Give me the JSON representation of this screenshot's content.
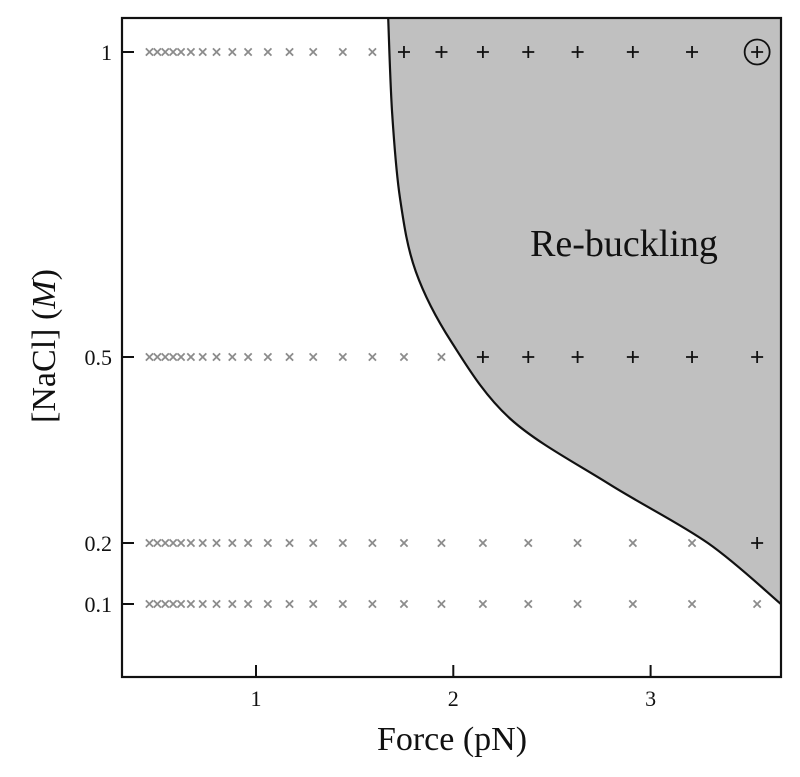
{
  "chart_data": {
    "type": "scatter",
    "xlabel": "Force (pN)",
    "ylabel_prefix": "[NaCl] (",
    "ylabel_unit": "M",
    "ylabel_suffix": ")",
    "xlim": [
      0.33,
      3.66
    ],
    "x_ticks": [
      1,
      2,
      3
    ],
    "x_tick_labels": [
      "1",
      "2",
      "3"
    ],
    "y_ticks": [
      0.1,
      0.2,
      0.5,
      1
    ],
    "y_tick_labels": [
      "0.1",
      "0.2",
      "0.5",
      "1"
    ],
    "y_scale": "piecewise (axis tick spacing preserved)",
    "region_label": "Re-buckling",
    "colors": {
      "region_fill": "#c0c0c0",
      "no_rebuckling_marker": "#8c8c8c",
      "rebuckling_marker": "#111111",
      "boundary": "#111111"
    },
    "series": [
      {
        "marker": "x",
        "points": [
          {
            "x": 0.46,
            "y": 1
          },
          {
            "x": 0.5,
            "y": 1
          },
          {
            "x": 0.54,
            "y": 1
          },
          {
            "x": 0.58,
            "y": 1
          },
          {
            "x": 0.62,
            "y": 1
          },
          {
            "x": 0.67,
            "y": 1
          },
          {
            "x": 0.73,
            "y": 1
          },
          {
            "x": 0.8,
            "y": 1
          },
          {
            "x": 0.88,
            "y": 1
          },
          {
            "x": 0.96,
            "y": 1
          },
          {
            "x": 1.06,
            "y": 1
          },
          {
            "x": 1.17,
            "y": 1
          },
          {
            "x": 1.29,
            "y": 1
          },
          {
            "x": 1.44,
            "y": 1
          },
          {
            "x": 1.59,
            "y": 1
          },
          {
            "x": 0.46,
            "y": 0.5
          },
          {
            "x": 0.5,
            "y": 0.5
          },
          {
            "x": 0.54,
            "y": 0.5
          },
          {
            "x": 0.58,
            "y": 0.5
          },
          {
            "x": 0.62,
            "y": 0.5
          },
          {
            "x": 0.67,
            "y": 0.5
          },
          {
            "x": 0.73,
            "y": 0.5
          },
          {
            "x": 0.8,
            "y": 0.5
          },
          {
            "x": 0.88,
            "y": 0.5
          },
          {
            "x": 0.96,
            "y": 0.5
          },
          {
            "x": 1.06,
            "y": 0.5
          },
          {
            "x": 1.17,
            "y": 0.5
          },
          {
            "x": 1.29,
            "y": 0.5
          },
          {
            "x": 1.44,
            "y": 0.5
          },
          {
            "x": 1.59,
            "y": 0.5
          },
          {
            "x": 1.75,
            "y": 0.5
          },
          {
            "x": 1.94,
            "y": 0.5
          },
          {
            "x": 0.46,
            "y": 0.2
          },
          {
            "x": 0.5,
            "y": 0.2
          },
          {
            "x": 0.54,
            "y": 0.2
          },
          {
            "x": 0.58,
            "y": 0.2
          },
          {
            "x": 0.62,
            "y": 0.2
          },
          {
            "x": 0.67,
            "y": 0.2
          },
          {
            "x": 0.73,
            "y": 0.2
          },
          {
            "x": 0.8,
            "y": 0.2
          },
          {
            "x": 0.88,
            "y": 0.2
          },
          {
            "x": 0.96,
            "y": 0.2
          },
          {
            "x": 1.06,
            "y": 0.2
          },
          {
            "x": 1.17,
            "y": 0.2
          },
          {
            "x": 1.29,
            "y": 0.2
          },
          {
            "x": 1.44,
            "y": 0.2
          },
          {
            "x": 1.59,
            "y": 0.2
          },
          {
            "x": 1.75,
            "y": 0.2
          },
          {
            "x": 1.94,
            "y": 0.2
          },
          {
            "x": 2.15,
            "y": 0.2
          },
          {
            "x": 2.38,
            "y": 0.2
          },
          {
            "x": 2.63,
            "y": 0.2
          },
          {
            "x": 2.91,
            "y": 0.2
          },
          {
            "x": 3.21,
            "y": 0.2
          },
          {
            "x": 0.46,
            "y": 0.1
          },
          {
            "x": 0.5,
            "y": 0.1
          },
          {
            "x": 0.54,
            "y": 0.1
          },
          {
            "x": 0.58,
            "y": 0.1
          },
          {
            "x": 0.62,
            "y": 0.1
          },
          {
            "x": 0.67,
            "y": 0.1
          },
          {
            "x": 0.73,
            "y": 0.1
          },
          {
            "x": 0.8,
            "y": 0.1
          },
          {
            "x": 0.88,
            "y": 0.1
          },
          {
            "x": 0.96,
            "y": 0.1
          },
          {
            "x": 1.06,
            "y": 0.1
          },
          {
            "x": 1.17,
            "y": 0.1
          },
          {
            "x": 1.29,
            "y": 0.1
          },
          {
            "x": 1.44,
            "y": 0.1
          },
          {
            "x": 1.59,
            "y": 0.1
          },
          {
            "x": 1.75,
            "y": 0.1
          },
          {
            "x": 1.94,
            "y": 0.1
          },
          {
            "x": 2.15,
            "y": 0.1
          },
          {
            "x": 2.38,
            "y": 0.1
          },
          {
            "x": 2.63,
            "y": 0.1
          },
          {
            "x": 2.91,
            "y": 0.1
          },
          {
            "x": 3.21,
            "y": 0.1
          },
          {
            "x": 3.54,
            "y": 0.1
          }
        ]
      },
      {
        "marker": "+",
        "points": [
          {
            "x": 1.75,
            "y": 1
          },
          {
            "x": 1.94,
            "y": 1
          },
          {
            "x": 2.15,
            "y": 1
          },
          {
            "x": 2.38,
            "y": 1
          },
          {
            "x": 2.63,
            "y": 1
          },
          {
            "x": 2.91,
            "y": 1
          },
          {
            "x": 3.21,
            "y": 1
          },
          {
            "x": 3.54,
            "y": 1,
            "circled": true
          },
          {
            "x": 2.15,
            "y": 0.5
          },
          {
            "x": 2.38,
            "y": 0.5
          },
          {
            "x": 2.63,
            "y": 0.5
          },
          {
            "x": 2.91,
            "y": 0.5
          },
          {
            "x": 3.21,
            "y": 0.5
          },
          {
            "x": 3.54,
            "y": 0.5
          },
          {
            "x": 3.54,
            "y": 0.2
          }
        ]
      }
    ],
    "boundary": [
      {
        "x": 1.67,
        "y": 1.1
      },
      {
        "x": 1.69,
        "y": 0.9
      },
      {
        "x": 1.73,
        "y": 0.76
      },
      {
        "x": 1.81,
        "y": 0.64
      },
      {
        "x": 1.99,
        "y": 0.525
      },
      {
        "x": 2.29,
        "y": 0.4
      },
      {
        "x": 2.79,
        "y": 0.295
      },
      {
        "x": 3.29,
        "y": 0.2
      },
      {
        "x": 3.66,
        "y": 0.1
      }
    ]
  }
}
